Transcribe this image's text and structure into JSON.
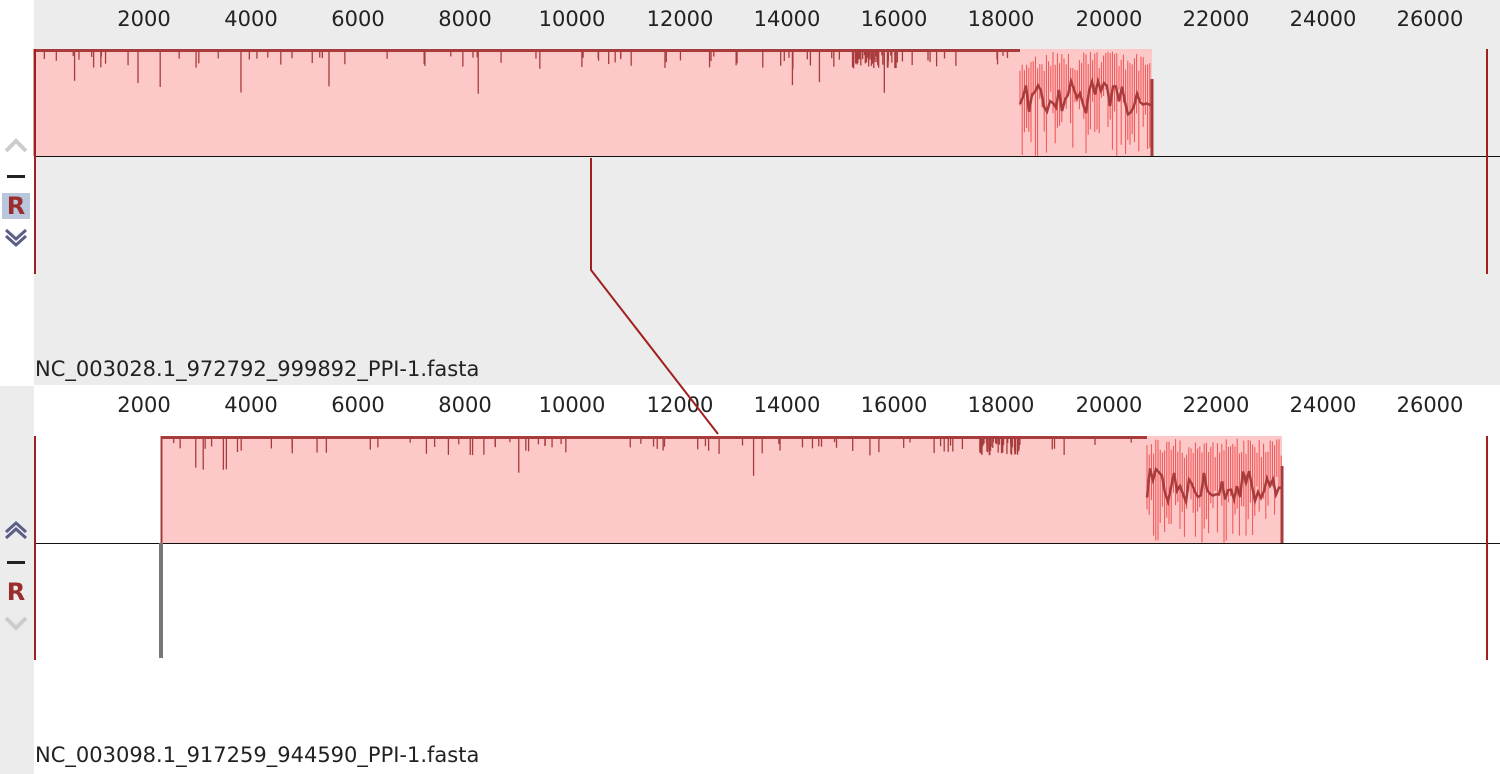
{
  "panels": [
    {
      "name": "NC_003028.1_972792_999892_PPI-1.fasta",
      "ruler_ticks": [
        "2000",
        "4000",
        "6000",
        "8000",
        "10000",
        "12000",
        "14000",
        "16000",
        "18000",
        "20000",
        "22000",
        "24000",
        "26000"
      ],
      "controls": {
        "up_icon": "chevron-up-icon",
        "minus_icon": "minus-icon",
        "r_label": "R",
        "down_icon": "chevron-down-icon"
      }
    },
    {
      "name": "NC_003098.1_917259_944590_PPI-1.fasta",
      "ruler_ticks": [
        "2000",
        "4000",
        "6000",
        "8000",
        "10000",
        "12000",
        "14000",
        "16000",
        "18000",
        "20000",
        "22000",
        "24000",
        "26000"
      ],
      "controls": {
        "up_icon": "chevron-up-icon",
        "minus_icon": "minus-icon",
        "r_label": "R",
        "down_icon": "chevron-down-icon"
      }
    }
  ],
  "colors": {
    "block_fill": "#fcc8c8",
    "block_edge": "#a83c3c",
    "high_variance": "#f05050",
    "connector": "#a02020",
    "panel1_background": "#ececec",
    "ruler_text": "#222222",
    "r_button_highlight": "#b8c7dd"
  }
}
